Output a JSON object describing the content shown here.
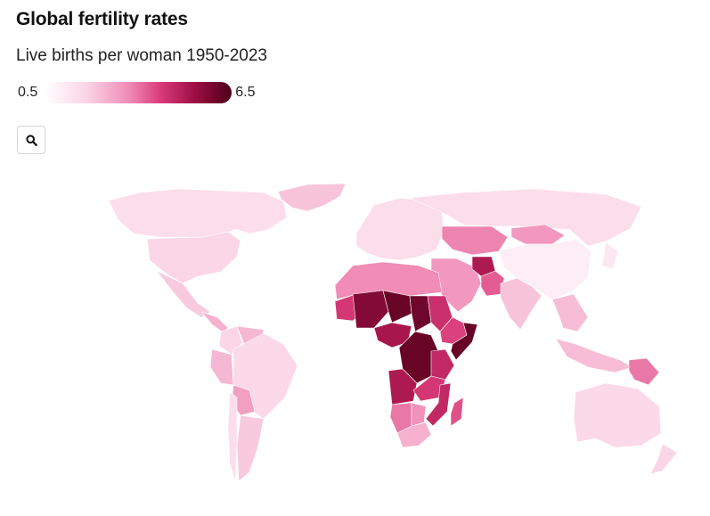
{
  "header": {
    "title": "Global fertility rates",
    "subtitle": "Live births per woman 1950-2023"
  },
  "legend": {
    "min_label": "0.5",
    "max_label": "6.5",
    "min_value": 0.5,
    "max_value": 6.5,
    "scale_colors": [
      "#ffffff",
      "#fbd6e6",
      "#f08cb6",
      "#d93b78",
      "#9e0f45",
      "#4d0018"
    ]
  },
  "controls": {
    "zoom_icon": "search-icon"
  },
  "map": {
    "ocean_color": "#ffffff",
    "regions": [
      {
        "name": "Greenland",
        "value": 2.0
      },
      {
        "name": "Canada",
        "value": 1.5
      },
      {
        "name": "United States",
        "value": 1.7
      },
      {
        "name": "Mexico",
        "value": 1.9
      },
      {
        "name": "Central America",
        "value": 2.3
      },
      {
        "name": "Colombia",
        "value": 1.7
      },
      {
        "name": "Venezuela",
        "value": 2.2
      },
      {
        "name": "Peru",
        "value": 2.2
      },
      {
        "name": "Brazil",
        "value": 1.6
      },
      {
        "name": "Bolivia",
        "value": 2.6
      },
      {
        "name": "Argentina",
        "value": 1.9
      },
      {
        "name": "Chile",
        "value": 1.5
      },
      {
        "name": "Europe",
        "value": 1.5
      },
      {
        "name": "Russia",
        "value": 1.5
      },
      {
        "name": "Kazakhstan",
        "value": 3.0
      },
      {
        "name": "Mongolia",
        "value": 2.7
      },
      {
        "name": "China",
        "value": 1.0
      },
      {
        "name": "Middle East",
        "value": 2.7
      },
      {
        "name": "Afghanistan",
        "value": 5.0
      },
      {
        "name": "Pakistan",
        "value": 3.6
      },
      {
        "name": "India",
        "value": 2.0
      },
      {
        "name": "Southeast Asia",
        "value": 2.1
      },
      {
        "name": "Indonesia",
        "value": 2.1
      },
      {
        "name": "Papua New Guinea",
        "value": 3.2
      },
      {
        "name": "Japan",
        "value": 1.2
      },
      {
        "name": "Australia",
        "value": 1.6
      },
      {
        "name": "New Zealand",
        "value": 1.7
      },
      {
        "name": "North Africa",
        "value": 2.9
      },
      {
        "name": "Mauritania",
        "value": 4.2
      },
      {
        "name": "Mali",
        "value": 5.7
      },
      {
        "name": "Niger",
        "value": 6.1
      },
      {
        "name": "Chad",
        "value": 6.0
      },
      {
        "name": "Sudan",
        "value": 4.4
      },
      {
        "name": "Nigeria",
        "value": 5.1
      },
      {
        "name": "Ethiopia",
        "value": 4.0
      },
      {
        "name": "Somalia",
        "value": 6.1
      },
      {
        "name": "DR Congo",
        "value": 6.1
      },
      {
        "name": "Angola",
        "value": 5.0
      },
      {
        "name": "Tanzania",
        "value": 4.6
      },
      {
        "name": "Zambia",
        "value": 4.2
      },
      {
        "name": "Mozambique",
        "value": 4.6
      },
      {
        "name": "Namibia",
        "value": 3.2
      },
      {
        "name": "Botswana",
        "value": 2.8
      },
      {
        "name": "South Africa",
        "value": 2.3
      },
      {
        "name": "Madagascar",
        "value": 3.8
      }
    ]
  }
}
